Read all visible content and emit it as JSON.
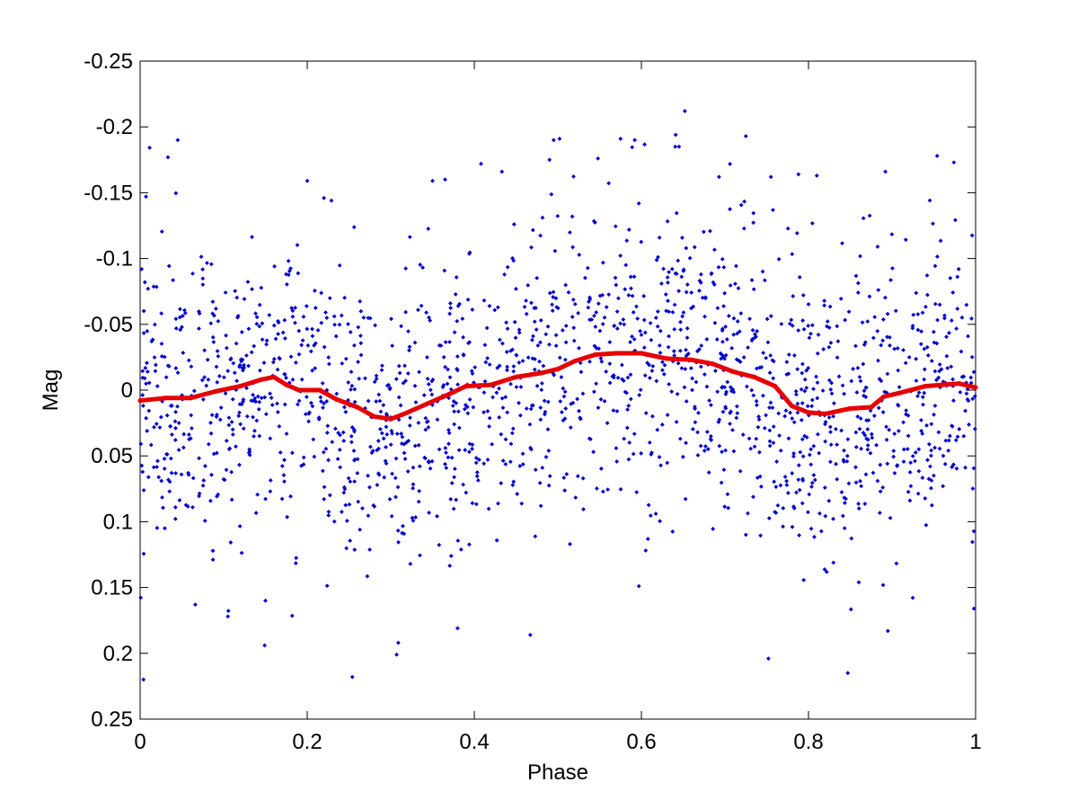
{
  "chart_data": {
    "type": "scatter",
    "title": "",
    "xlabel": "Phase",
    "ylabel": "Mag",
    "xlim": [
      0,
      1
    ],
    "ylim": [
      -0.25,
      0.25
    ],
    "y_reversed": true,
    "grid": false,
    "legend": "none",
    "xticks": [
      0,
      0.2,
      0.4,
      0.6,
      0.8,
      1
    ],
    "xtick_labels": [
      "0",
      "0.2",
      "0.4",
      "0.6",
      "0.8",
      "1"
    ],
    "yticks": [
      -0.25,
      -0.2,
      -0.15,
      -0.1,
      -0.05,
      0,
      0.05,
      0.1,
      0.15,
      0.2,
      0.25
    ],
    "ytick_labels": [
      "-0.25",
      "-0.2",
      "-0.15",
      "-0.1",
      "-0.05",
      "0",
      "0.05",
      "0.1",
      "0.15",
      "0.2",
      "0.25"
    ],
    "series": [
      {
        "kind": "scatter",
        "color": "#0000cc",
        "approx_point_count": 1800,
        "noise_std": 0.055,
        "points": [
          [
            0.007,
            -0.147
          ],
          [
            0.045,
            -0.19
          ],
          [
            0.004,
            0.22
          ],
          [
            0.066,
            0.163
          ],
          [
            0.105,
            0.172
          ],
          [
            0.15,
            0.16
          ],
          [
            0.149,
            0.194
          ],
          [
            0.2,
            -0.159
          ],
          [
            0.22,
            -0.146
          ],
          [
            0.229,
            -0.144
          ],
          [
            0.254,
            0.218
          ],
          [
            0.307,
            0.201
          ],
          [
            0.309,
            0.192
          ],
          [
            0.35,
            -0.159
          ],
          [
            0.365,
            -0.16
          ],
          [
            0.38,
            0.181
          ],
          [
            0.408,
            -0.172
          ],
          [
            0.433,
            -0.166
          ],
          [
            0.467,
            0.186
          ],
          [
            0.49,
            -0.175
          ],
          [
            0.495,
            -0.19
          ],
          [
            0.502,
            -0.191
          ],
          [
            0.548,
            -0.176
          ],
          [
            0.575,
            -0.191
          ],
          [
            0.592,
            -0.19
          ],
          [
            0.597,
            0.149
          ],
          [
            0.641,
            -0.194
          ],
          [
            0.652,
            -0.212
          ],
          [
            0.645,
            -0.185
          ],
          [
            0.725,
            -0.193
          ],
          [
            0.752,
            0.204
          ],
          [
            0.755,
            -0.162
          ],
          [
            0.788,
            -0.164
          ],
          [
            0.81,
            -0.163
          ],
          [
            0.847,
            0.215
          ],
          [
            0.892,
            -0.166
          ],
          [
            0.895,
            0.183
          ],
          [
            0.954,
            -0.178
          ],
          [
            0.974,
            -0.173
          ],
          [
            0.998,
            0.166
          ]
        ]
      },
      {
        "kind": "line",
        "color": "#e60000",
        "name": "",
        "points": [
          [
            0.0,
            0.008
          ],
          [
            0.03,
            0.006
          ],
          [
            0.06,
            0.006
          ],
          [
            0.09,
            0.001
          ],
          [
            0.12,
            -0.003
          ],
          [
            0.145,
            -0.008
          ],
          [
            0.16,
            -0.01
          ],
          [
            0.175,
            -0.004
          ],
          [
            0.19,
            0.0
          ],
          [
            0.215,
            0.0
          ],
          [
            0.235,
            0.007
          ],
          [
            0.26,
            0.013
          ],
          [
            0.28,
            0.02
          ],
          [
            0.3,
            0.022
          ],
          [
            0.32,
            0.017
          ],
          [
            0.345,
            0.01
          ],
          [
            0.37,
            0.003
          ],
          [
            0.39,
            -0.003
          ],
          [
            0.42,
            -0.004
          ],
          [
            0.45,
            -0.01
          ],
          [
            0.48,
            -0.013
          ],
          [
            0.5,
            -0.016
          ],
          [
            0.52,
            -0.022
          ],
          [
            0.545,
            -0.027
          ],
          [
            0.57,
            -0.028
          ],
          [
            0.6,
            -0.028
          ],
          [
            0.63,
            -0.024
          ],
          [
            0.66,
            -0.023
          ],
          [
            0.685,
            -0.02
          ],
          [
            0.71,
            -0.014
          ],
          [
            0.735,
            -0.01
          ],
          [
            0.76,
            -0.003
          ],
          [
            0.78,
            0.012
          ],
          [
            0.8,
            0.017
          ],
          [
            0.82,
            0.018
          ],
          [
            0.85,
            0.014
          ],
          [
            0.875,
            0.013
          ],
          [
            0.89,
            0.005
          ],
          [
            0.91,
            0.002
          ],
          [
            0.94,
            -0.003
          ],
          [
            0.96,
            -0.004
          ],
          [
            0.98,
            -0.005
          ],
          [
            1.0,
            -0.002
          ]
        ]
      }
    ]
  }
}
